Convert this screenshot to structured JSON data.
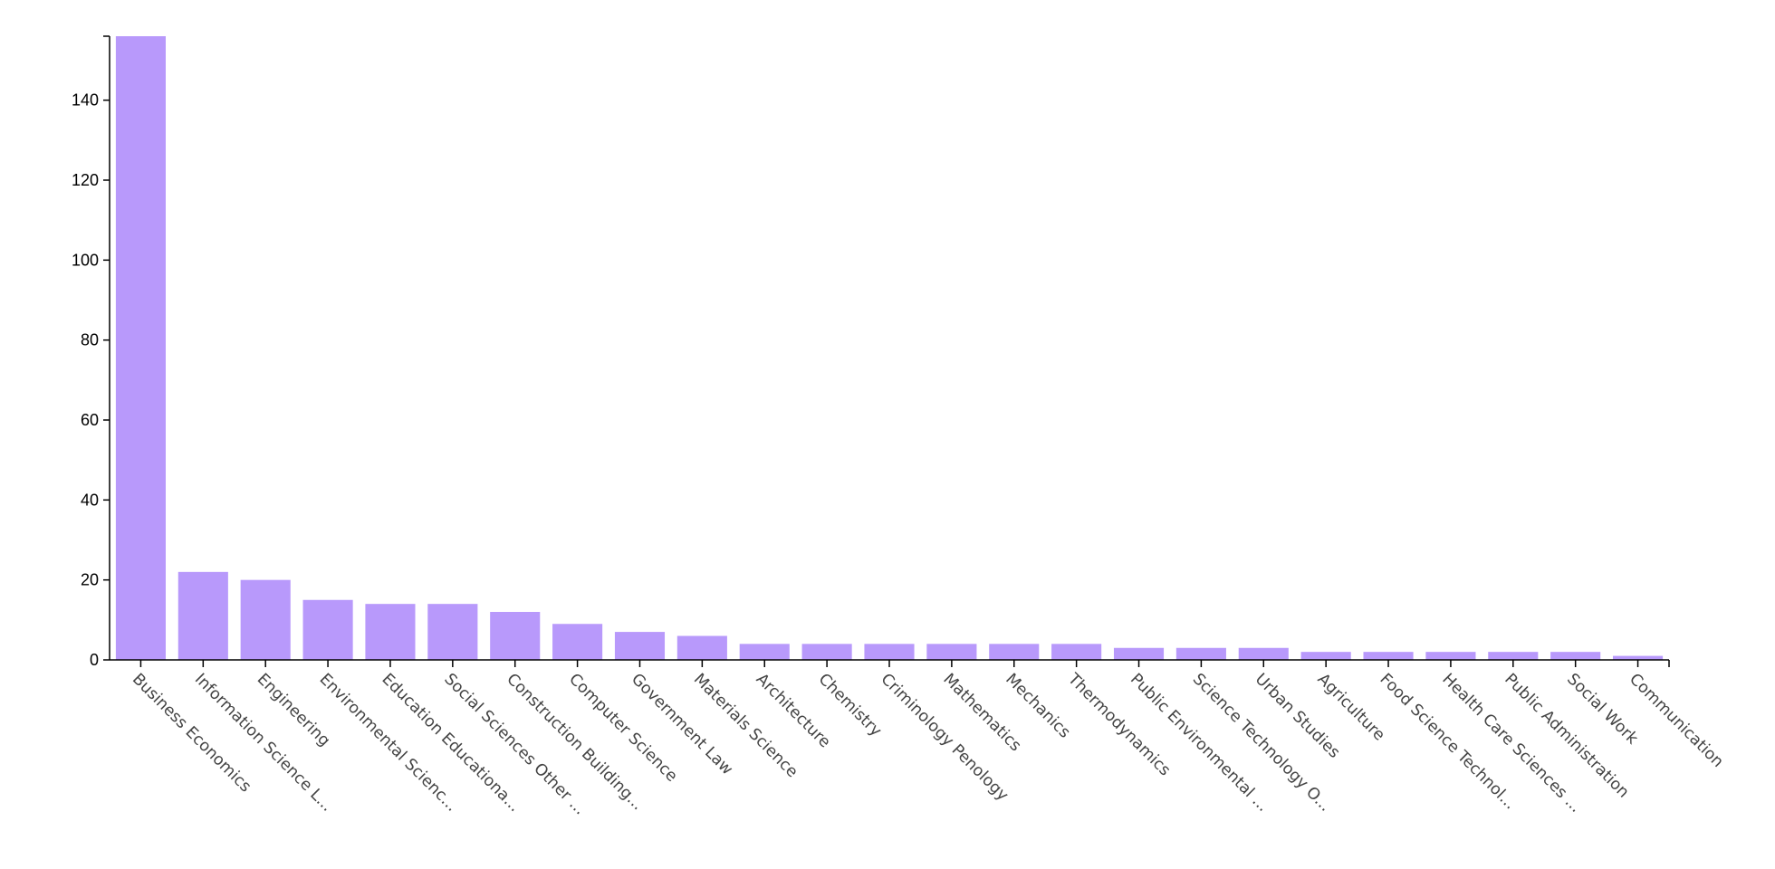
{
  "chart_data": {
    "type": "bar",
    "title": "",
    "xlabel": "",
    "ylabel": "",
    "ylim": [
      0,
      156
    ],
    "yticks": [
      0,
      20,
      40,
      60,
      80,
      100,
      120,
      140
    ],
    "grid": false,
    "bar_color": "#b899fb",
    "categories": [
      "Business Economics",
      "Information Science L...",
      "Engineering",
      "Environmental Scienc...",
      "Education Educationa...",
      "Social Sciences Other ...",
      "Construction Building...",
      "Computer Science",
      "Government Law",
      "Materials Science",
      "Architecture",
      "Chemistry",
      "Criminology Penology",
      "Mathematics",
      "Mechanics",
      "Thermodynamics",
      "Public Environmental ...",
      "Science Technology O...",
      "Urban Studies",
      "Agriculture",
      "Food Science Technol...",
      "Health Care Sciences ...",
      "Public Administration",
      "Social Work",
      "Communication"
    ],
    "values": [
      156,
      22,
      20,
      15,
      14,
      14,
      12,
      9,
      7,
      6,
      4,
      4,
      4,
      4,
      4,
      4,
      3,
      3,
      3,
      2,
      2,
      2,
      2,
      2,
      1
    ]
  }
}
